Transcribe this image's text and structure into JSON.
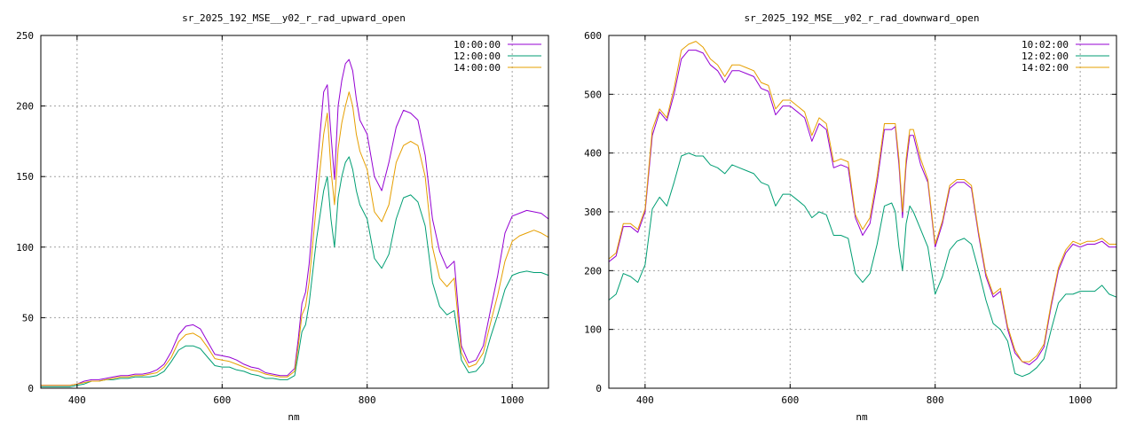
{
  "chart_data": [
    {
      "type": "line",
      "title": "sr_2025_192_MSE__y02_r_rad_upward_open",
      "xlabel": "nm",
      "ylabel": "",
      "xlim": [
        350,
        1050
      ],
      "ylim": [
        0,
        250
      ],
      "xticks": [
        400,
        600,
        800,
        1000
      ],
      "yticks": [
        0,
        50,
        100,
        150,
        200,
        250
      ],
      "grid": true,
      "legend_position": "top-right",
      "x": [
        350,
        370,
        390,
        400,
        410,
        420,
        430,
        440,
        450,
        460,
        470,
        480,
        490,
        500,
        510,
        520,
        530,
        540,
        550,
        560,
        570,
        580,
        590,
        600,
        610,
        620,
        630,
        640,
        650,
        660,
        670,
        680,
        690,
        700,
        705,
        710,
        715,
        720,
        730,
        740,
        745,
        750,
        755,
        760,
        765,
        770,
        775,
        780,
        785,
        790,
        800,
        810,
        820,
        830,
        840,
        850,
        860,
        870,
        880,
        890,
        900,
        910,
        920,
        930,
        940,
        950,
        960,
        970,
        980,
        990,
        1000,
        1010,
        1020,
        1030,
        1040,
        1050
      ],
      "series": [
        {
          "name": "10:00:00",
          "color": "#9400d3",
          "values": [
            2,
            2,
            2,
            3,
            5,
            6,
            6,
            7,
            8,
            9,
            9,
            10,
            10,
            11,
            13,
            17,
            26,
            38,
            44,
            45,
            42,
            33,
            24,
            23,
            22,
            20,
            17,
            15,
            14,
            11,
            10,
            9,
            9,
            14,
            35,
            60,
            68,
            88,
            150,
            210,
            215,
            180,
            148,
            200,
            218,
            230,
            233,
            225,
            205,
            190,
            180,
            150,
            140,
            160,
            185,
            197,
            195,
            190,
            165,
            120,
            97,
            85,
            90,
            30,
            18,
            20,
            30,
            55,
            80,
            110,
            122,
            124,
            126,
            125,
            124,
            120
          ],
          "labels_shown": true
        },
        {
          "name": "12:00:00",
          "color": "#009e73",
          "values": [
            1,
            1,
            1,
            2,
            3,
            5,
            5,
            6,
            6,
            7,
            7,
            8,
            8,
            8,
            9,
            12,
            19,
            27,
            30,
            30,
            28,
            22,
            16,
            15,
            15,
            13,
            12,
            10,
            9,
            7,
            7,
            6,
            6,
            9,
            24,
            40,
            45,
            60,
            105,
            140,
            150,
            120,
            100,
            135,
            150,
            160,
            164,
            155,
            140,
            130,
            120,
            92,
            85,
            95,
            120,
            135,
            137,
            132,
            115,
            75,
            58,
            52,
            55,
            20,
            11,
            12,
            18,
            36,
            52,
            70,
            80,
            82,
            83,
            82,
            82,
            80
          ]
        },
        {
          "name": "14:00:00",
          "color": "#e69f00",
          "values": [
            2,
            2,
            2,
            3,
            4,
            5,
            5,
            6,
            7,
            8,
            8,
            9,
            9,
            10,
            11,
            15,
            22,
            33,
            38,
            39,
            36,
            29,
            21,
            20,
            19,
            17,
            15,
            13,
            12,
            10,
            9,
            8,
            8,
            12,
            30,
            52,
            58,
            75,
            130,
            180,
            195,
            155,
            130,
            170,
            188,
            200,
            210,
            200,
            180,
            168,
            155,
            125,
            118,
            130,
            160,
            172,
            175,
            172,
            150,
            100,
            78,
            72,
            78,
            25,
            15,
            17,
            25,
            46,
            66,
            90,
            104,
            108,
            110,
            112,
            110,
            107
          ]
        }
      ]
    },
    {
      "type": "line",
      "title": "sr_2025_192_MSE__y02_r_rad_downward_open",
      "xlabel": "nm",
      "ylabel": "",
      "xlim": [
        350,
        1050
      ],
      "ylim": [
        0,
        600
      ],
      "xticks": [
        400,
        600,
        800,
        1000
      ],
      "yticks": [
        0,
        100,
        200,
        300,
        400,
        500,
        600
      ],
      "grid": true,
      "legend_position": "top-right",
      "x": [
        350,
        360,
        370,
        380,
        390,
        400,
        410,
        420,
        430,
        440,
        450,
        460,
        470,
        480,
        490,
        500,
        510,
        520,
        530,
        540,
        550,
        560,
        570,
        580,
        590,
        600,
        610,
        620,
        630,
        640,
        650,
        660,
        670,
        680,
        690,
        700,
        710,
        720,
        730,
        740,
        745,
        750,
        755,
        760,
        765,
        770,
        780,
        790,
        800,
        810,
        820,
        830,
        840,
        850,
        860,
        870,
        880,
        890,
        900,
        910,
        920,
        930,
        940,
        950,
        960,
        970,
        980,
        990,
        1000,
        1010,
        1020,
        1030,
        1040,
        1050
      ],
      "series": [
        {
          "name": "10:02:00",
          "color": "#9400d3",
          "values": [
            215,
            225,
            275,
            275,
            265,
            300,
            430,
            470,
            455,
            500,
            560,
            575,
            575,
            570,
            550,
            540,
            520,
            540,
            540,
            535,
            530,
            510,
            505,
            465,
            480,
            480,
            470,
            460,
            420,
            450,
            440,
            375,
            380,
            375,
            290,
            260,
            280,
            350,
            440,
            440,
            445,
            380,
            290,
            380,
            430,
            430,
            380,
            350,
            240,
            280,
            340,
            350,
            350,
            340,
            260,
            190,
            155,
            165,
            100,
            60,
            45,
            40,
            50,
            70,
            140,
            200,
            230,
            245,
            240,
            245,
            245,
            250,
            240,
            240
          ],
          "labels_shown": true
        },
        {
          "name": "12:02:00",
          "color": "#009e73",
          "values": [
            150,
            160,
            195,
            190,
            180,
            210,
            305,
            325,
            310,
            350,
            395,
            400,
            395,
            395,
            380,
            375,
            365,
            380,
            375,
            370,
            365,
            350,
            345,
            310,
            330,
            330,
            320,
            310,
            290,
            300,
            295,
            260,
            260,
            255,
            195,
            180,
            195,
            245,
            310,
            315,
            300,
            240,
            200,
            280,
            310,
            300,
            270,
            240,
            160,
            190,
            235,
            250,
            255,
            245,
            200,
            150,
            110,
            100,
            80,
            25,
            20,
            25,
            35,
            50,
            100,
            145,
            160,
            160,
            165,
            165,
            165,
            175,
            160,
            155
          ]
        },
        {
          "name": "14:02:00",
          "color": "#e69f00",
          "values": [
            220,
            230,
            280,
            280,
            270,
            305,
            440,
            475,
            460,
            510,
            575,
            585,
            590,
            580,
            560,
            550,
            530,
            550,
            550,
            545,
            540,
            520,
            515,
            475,
            490,
            490,
            480,
            470,
            430,
            460,
            450,
            385,
            390,
            385,
            295,
            270,
            290,
            360,
            450,
            450,
            450,
            390,
            300,
            390,
            440,
            440,
            390,
            355,
            245,
            285,
            345,
            355,
            355,
            345,
            265,
            195,
            160,
            170,
            105,
            65,
            45,
            45,
            55,
            75,
            145,
            205,
            235,
            250,
            245,
            250,
            250,
            255,
            245,
            245
          ]
        }
      ]
    }
  ],
  "colors": {
    "series_1": "#9400d3",
    "series_2": "#009e73",
    "series_3": "#e69f00",
    "grid": "#a0a0a0",
    "background": "#ffffff"
  }
}
